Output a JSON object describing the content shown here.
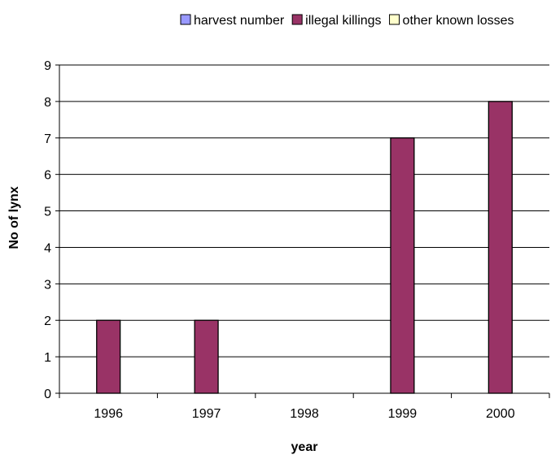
{
  "chart_data": {
    "type": "bar",
    "categories": [
      "1996",
      "1997",
      "1998",
      "1999",
      "2000"
    ],
    "series": [
      {
        "name": "harvest number",
        "values": [
          0,
          0,
          0,
          0,
          0
        ],
        "color": "#9999ff"
      },
      {
        "name": "illegal killings",
        "values": [
          2,
          2,
          0,
          7,
          8
        ],
        "color": "#993366"
      },
      {
        "name": "other known losses",
        "values": [
          0,
          0,
          0,
          0,
          0
        ],
        "color": "#ffffcc"
      }
    ],
    "xlabel": "year",
    "ylabel": "No of lynx",
    "ylim": [
      0,
      9
    ],
    "yticks": [
      "0",
      "1",
      "2",
      "3",
      "4",
      "5",
      "6",
      "7",
      "8",
      "9"
    ],
    "grid": true,
    "legend_position": "top"
  }
}
